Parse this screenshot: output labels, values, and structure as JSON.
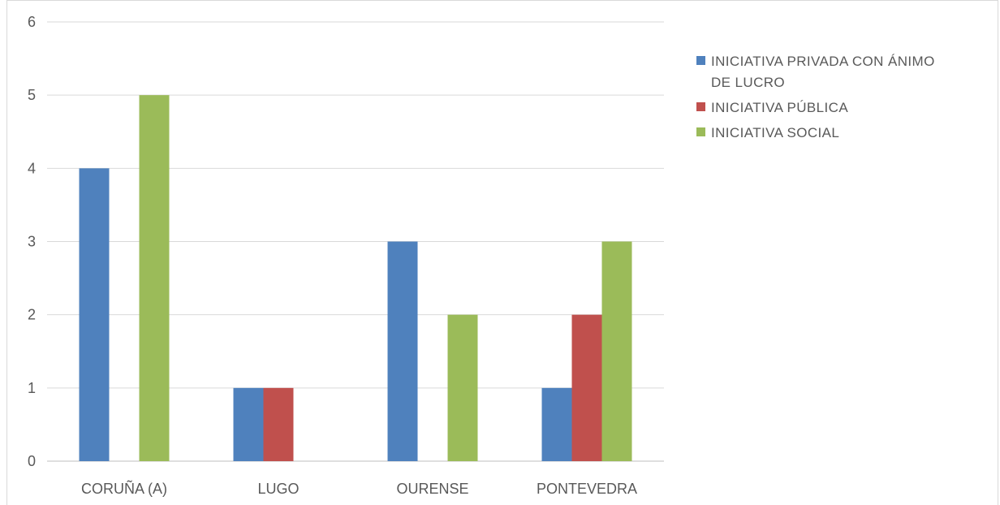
{
  "chart_data": {
    "type": "bar",
    "title": "",
    "xlabel": "",
    "ylabel": "",
    "categories": [
      "CORUÑA (A)",
      "LUGO",
      "OURENSE",
      "PONTEVEDRA"
    ],
    "series": [
      {
        "name": "INICIATIVA PRIVADA CON ÁNIMO DE LUCRO",
        "values": [
          4,
          1,
          3,
          1
        ],
        "color": "#4f81bd"
      },
      {
        "name": "INICIATIVA PÚBLICA",
        "values": [
          0,
          1,
          0,
          2
        ],
        "color": "#c0504d"
      },
      {
        "name": "INICIATIVA SOCIAL",
        "values": [
          5,
          0,
          2,
          3
        ],
        "color": "#9bbb59"
      }
    ],
    "ylim": [
      0,
      6
    ],
    "yticks": [
      0,
      1,
      2,
      3,
      4,
      5,
      6
    ],
    "grid": true,
    "legend": "right",
    "legend_lines": [
      [
        "INICIATIVA PRIVADA CON ÁNIMO",
        "DE LUCRO"
      ],
      [
        "INICIATIVA PÚBLICA"
      ],
      [
        "INICIATIVA SOCIAL"
      ]
    ]
  }
}
